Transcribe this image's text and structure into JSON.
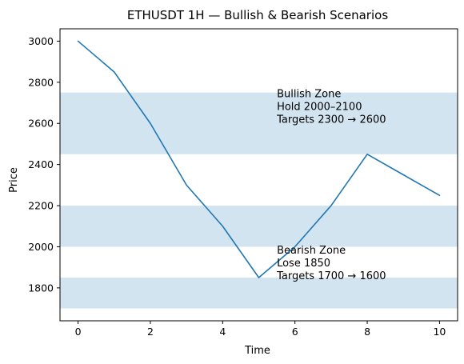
{
  "chart_data": {
    "type": "line",
    "title": "ETHUSDT 1H — Bullish & Bearish Scenarios",
    "xlabel": "Time",
    "ylabel": "Price",
    "xlim": [
      -0.5,
      10.5
    ],
    "ylim": [
      1640,
      3060
    ],
    "xticks": [
      0,
      2,
      4,
      6,
      8,
      10
    ],
    "yticks": [
      1800,
      2000,
      2200,
      2400,
      2600,
      2800,
      3000
    ],
    "grid": false,
    "series": [
      {
        "x": [
          0,
          1,
          2,
          3,
          4,
          5,
          6,
          7,
          8,
          9,
          10
        ],
        "values": [
          3000,
          2850,
          2600,
          2300,
          2100,
          1850,
          2000,
          2200,
          2450,
          2350,
          2250
        ],
        "color": "#1f77b4"
      }
    ],
    "bands": [
      {
        "from": 2450,
        "to": 2750,
        "color": "#1f77b4"
      },
      {
        "from": 2000,
        "to": 2200,
        "color": "#1f77b4"
      },
      {
        "from": 1700,
        "to": 1850,
        "color": "#1f77b4"
      }
    ],
    "annotations": [
      {
        "x": 5.5,
        "y": 2680,
        "lines": [
          "Bullish Zone",
          "Hold 2000–2100",
          "Targets 2300 → 2600"
        ]
      },
      {
        "x": 5.5,
        "y": 1920,
        "lines": [
          "Bearish Zone",
          "Lose 1850",
          "Targets 1700 → 1600"
        ]
      }
    ]
  }
}
